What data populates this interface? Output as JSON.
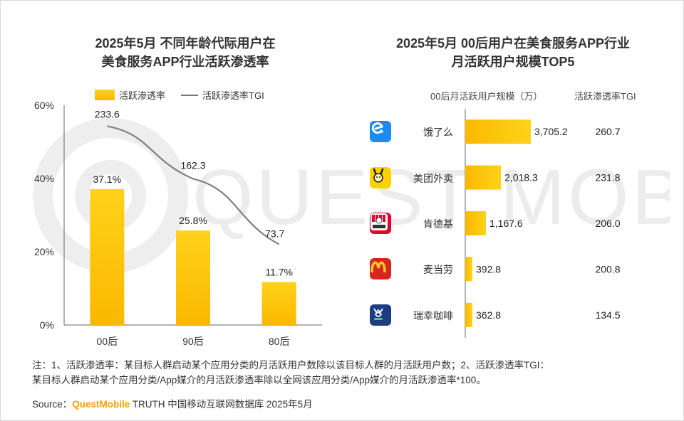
{
  "left_chart": {
    "title_line1": "2025年5月 不同年龄代际用户在",
    "title_line2": "美食服务APP行业活跃渗透率",
    "legend_bar": "活跃渗透率",
    "legend_line": "活跃渗透率TGI"
  },
  "right_chart": {
    "title_line1": "2025年5月 00后用户在美食服务APP行业",
    "title_line2": "月活跃用户规模TOP5",
    "col_header_scale": "00后月活跃用户规模（万）",
    "col_header_tgi": "活跃渗透率TGI",
    "apps": [
      {
        "name": "饿了么",
        "icon": "eleme-icon",
        "color": "#1a8cf0"
      },
      {
        "name": "美团外卖",
        "icon": "meituan-waimai-icon",
        "color": "#ffd100"
      },
      {
        "name": "肯德基",
        "icon": "kfc-icon",
        "color": "#e4002b"
      },
      {
        "name": "麦当劳",
        "icon": "mcdonalds-icon",
        "color": "#d8261c"
      },
      {
        "name": "瑞幸咖啡",
        "icon": "luckin-coffee-icon",
        "color": "#1d3d83"
      }
    ]
  },
  "chart_data": [
    {
      "type": "bar",
      "categories": [
        "00后",
        "90后",
        "80后"
      ],
      "series": [
        {
          "name": "活跃渗透率",
          "type": "bar",
          "values": [
            37.1,
            25.8,
            11.7
          ],
          "labels": [
            "37.1%",
            "25.8%",
            "11.7%"
          ]
        },
        {
          "name": "活跃渗透率TGI",
          "type": "line",
          "values": [
            233.6,
            162.3,
            73.7
          ],
          "labels": [
            "233.6",
            "162.3",
            "73.7"
          ]
        }
      ],
      "yticks": [
        "60%",
        "40%",
        "20%",
        "0%"
      ],
      "ylim": [
        0,
        60
      ],
      "title": "2025年5月 不同年龄代际用户在美食服务APP行业活跃渗透率",
      "legend": "top",
      "grid": false
    },
    {
      "type": "bar",
      "orientation": "horizontal",
      "categories": [
        "饿了么",
        "美团外卖",
        "肯德基",
        "麦当劳",
        "瑞幸咖啡"
      ],
      "series": [
        {
          "name": "00后月活跃用户规模（万）",
          "values": [
            3705.2,
            2018.3,
            1167.6,
            392.8,
            362.8
          ],
          "labels": [
            "3,705.2",
            "2,018.3",
            "1,167.6",
            "392.8",
            "362.8"
          ]
        },
        {
          "name": "活跃渗透率TGI",
          "values": [
            260.7,
            231.8,
            206.0,
            200.8,
            134.5
          ],
          "labels": [
            "260.7",
            "231.8",
            "206.0",
            "200.8",
            "134.5"
          ]
        }
      ],
      "title": "2025年5月 00后用户在美食服务APP行业月活跃用户规模TOP5",
      "grid": false
    }
  ],
  "footer": {
    "note_line1": "注：1、活跃渗透率：某目标人群启动某个应用分类的月活跃用户数除以该目标人群的月活跃用户数；2、活跃渗透率TGI：",
    "note_line2": "某目标人群启动某个应用分类/App媒介的月活跃渗透率除以全网该应用分类/App媒介的月活跃渗透率*100。",
    "source_label": "Source：",
    "source_brand": "QuestMobile",
    "source_text": " TRUTH 中国移动互联网数据库 2025年5月"
  },
  "watermark": {
    "text": "QUEST MOBILE"
  },
  "colors": {
    "bar_top": "#ffd21a",
    "bar_bottom": "#fbb800",
    "tgi_line": "#808080"
  }
}
